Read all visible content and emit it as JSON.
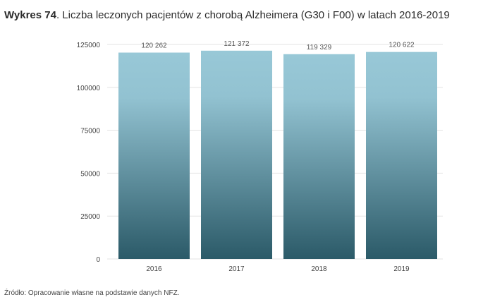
{
  "title": {
    "lead": "Wykres 74",
    "text": ". Liczba leczonych pacjentów z chorobą Alzheimera (G30 i F00) w latach 2016-2019"
  },
  "source": "Źródło: Opracowanie własne na podstawie danych NFZ.",
  "chart_data": {
    "type": "bar",
    "categories": [
      "2016",
      "2017",
      "2018",
      "2019"
    ],
    "values": [
      120262,
      121372,
      119329,
      120622
    ],
    "value_labels": [
      "120 262",
      "121 372",
      "119 329",
      "120 622"
    ],
    "y_ticks": [
      "0",
      "25000",
      "50000",
      "75000",
      "100000",
      "125000"
    ],
    "y_tick_values": [
      0,
      25000,
      50000,
      75000,
      100000,
      125000
    ],
    "ylim": [
      0,
      125000
    ],
    "grid": true,
    "xlabel": "",
    "ylabel": "",
    "colors": {
      "bar_top": "#98c8d7",
      "bar_bottom": "#2b5a68",
      "grid": "#e3e3e3",
      "tick_text": "#444444",
      "value_text": "#555555"
    }
  }
}
